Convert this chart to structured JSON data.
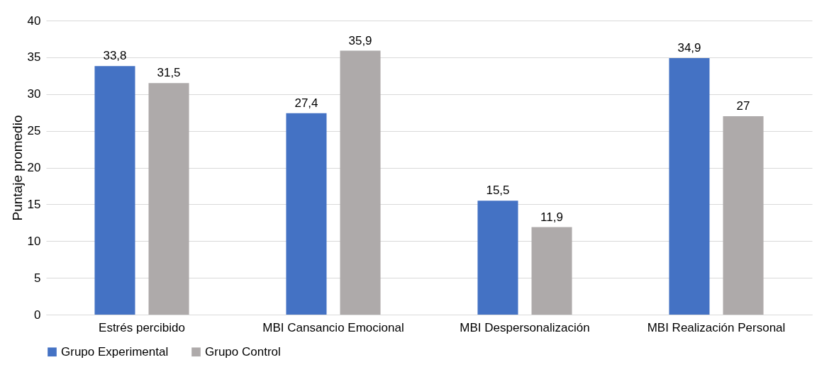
{
  "chart_data": {
    "type": "bar",
    "ylabel": "Puntaje promedio",
    "categories": [
      "Estrés percibido",
      "MBI Cansancio Emocional",
      "MBI Despersonalización",
      "MBI Realización Personal"
    ],
    "series": [
      {
        "name": "Grupo Experimental",
        "color": "#4472c4",
        "values": [
          33.8,
          27.4,
          15.5,
          34.9
        ],
        "value_labels": [
          "33,8",
          "27,4",
          "15,5",
          "34,9"
        ]
      },
      {
        "name": "Grupo Control",
        "color": "#aeaaaa",
        "values": [
          31.5,
          35.9,
          11.9,
          27
        ],
        "value_labels": [
          "31,5",
          "35,9",
          "11,9",
          "27"
        ]
      }
    ],
    "ylim": [
      0,
      40
    ],
    "yticks": [
      0,
      5,
      10,
      15,
      20,
      25,
      30,
      35,
      40
    ],
    "grid": "y",
    "legend": "bottom"
  }
}
